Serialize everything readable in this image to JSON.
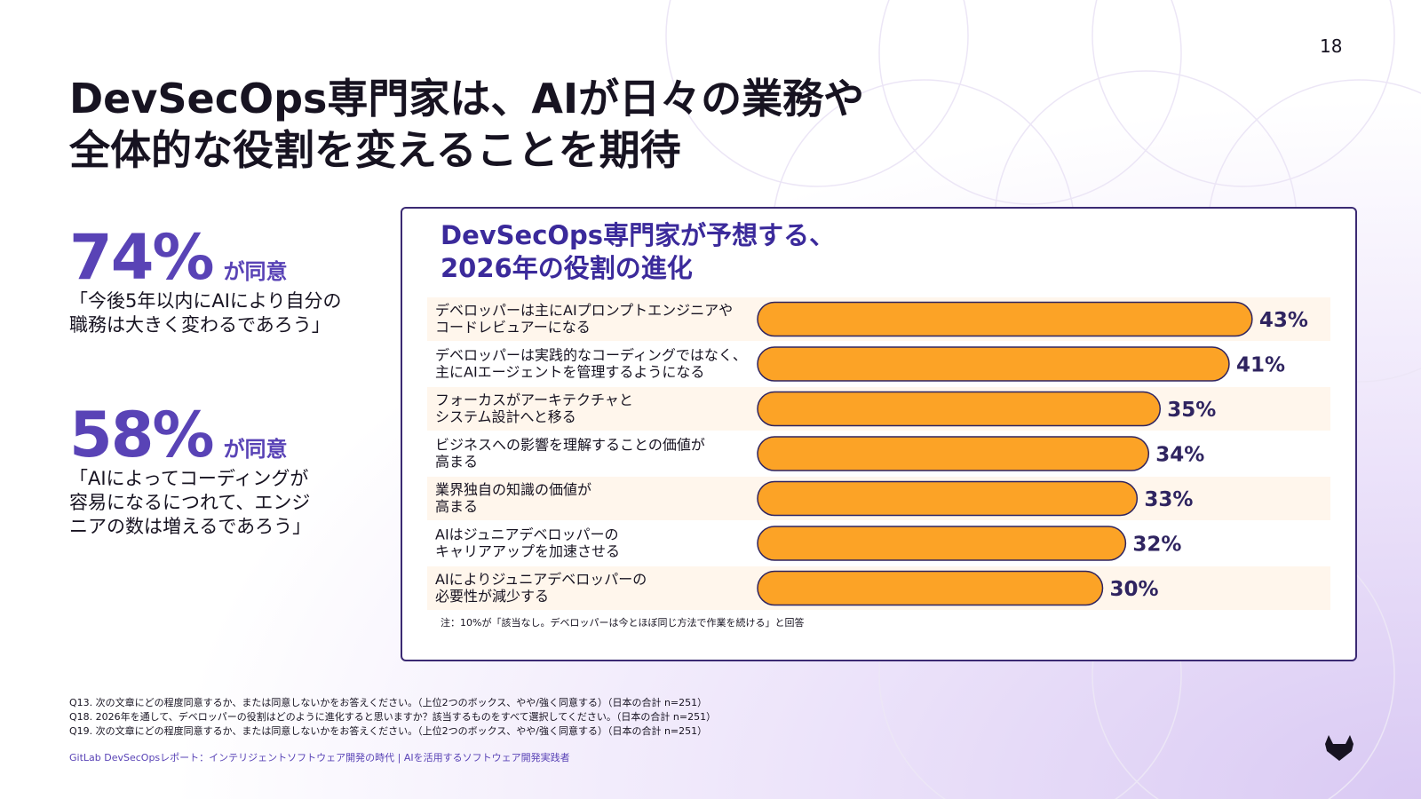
{
  "page_number": "18",
  "title_lines": [
    "DevSecOps専門家は、AIが日々の業務や",
    "全体的な役割を変えることを期待"
  ],
  "stats": [
    {
      "value": "74%",
      "suffix": "が同意",
      "quote": "「今後5年以内にAIにより自分の\n職務は大きく変わるであろう」"
    },
    {
      "value": "58%",
      "suffix": "が同意",
      "quote": "「AIによってコーディングが\n容易になるにつれて、エンジ\nニアの数は増えるであろう」"
    }
  ],
  "colors": {
    "bar": "#fca326",
    "bar_stroke": "#2f2460",
    "row_bg": "#fff6ec",
    "value_text": "#2f2460",
    "accent": "#5943b6"
  },
  "chart_data": {
    "type": "bar",
    "orientation": "horizontal",
    "title_lines": [
      "DevSecOps専門家が予想する、",
      "2026年の役割の進化"
    ],
    "categories": [
      [
        "デベロッパーは主にAIプロンプトエンジニアや",
        "コードレビュアーになる"
      ],
      [
        "デベロッパーは実践的なコーディングではなく、",
        "主にAIエージェントを管理するようになる"
      ],
      [
        "フォーカスがアーキテクチャと",
        "システム設計へと移る"
      ],
      [
        "ビジネスへの影響を理解することの価値が",
        "高まる"
      ],
      [
        "業界独自の知識の価値が",
        "高まる"
      ],
      [
        "AIはジュニアデベロッパーの",
        "キャリアアップを加速させる"
      ],
      [
        "AIによりジュニアデベロッパーの",
        "必要性が減少する"
      ]
    ],
    "values": [
      43,
      41,
      35,
      34,
      33,
      32,
      30
    ],
    "value_labels": [
      "43%",
      "41%",
      "35%",
      "34%",
      "33%",
      "32%",
      "30%"
    ],
    "unit": "%",
    "note": "注：10%が「該当なし。デベロッパーは今とほぼ同じ方法で作業を続ける」と回答"
  },
  "questions": [
    "Q13. 次の文章にどの程度同意するか、または同意しないかをお答えください。（上位2つのボックス、やや/強く同意する）（日本の合計 n=251）",
    "Q18. 2026年を通して、デベロッパーの役割はどのように進化すると思いますか？該当するものをすべて選択してください。（日本の合計 n=251）",
    "Q19. 次の文章にどの程度同意するか、または同意しないかをお答えください。（上位2つのボックス、やや/強く同意する）（日本の合計 n=251）"
  ],
  "source": "GitLab DevSecOpsレポート：インテリジェントソフトウェア開発の時代 | AIを活用するソフトウェア開発実践者",
  "logo_icon": "gitlab-tanuki-icon"
}
